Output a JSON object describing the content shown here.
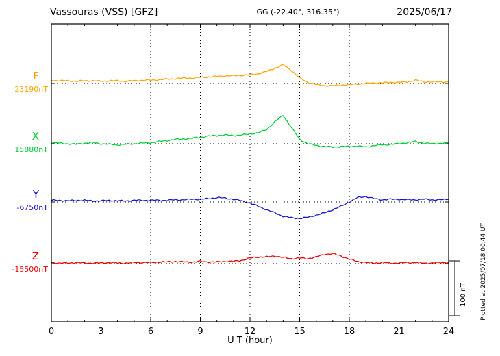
{
  "header": {
    "title": "Vassouras (VSS)  [GFZ]",
    "coordinates": "GG (-22.40°, 316.35°)",
    "date": "2025/06/17"
  },
  "side": {
    "plotted_at": "Plotted at 2025/07/18 00:44 UT",
    "scale_label": "100 nT"
  },
  "chart_data": {
    "type": "line",
    "title": "Vassouras (VSS) [GFZ] magnetogram",
    "subtitle": "GG (-22.40°, 316.35°)",
    "date": "2025/06/17",
    "xlabel": "U T (hour)",
    "xlim": [
      0,
      24
    ],
    "x_ticks": [
      0,
      3,
      6,
      9,
      12,
      15,
      18,
      21,
      24
    ],
    "x_step_hours": 0.5,
    "scale_bar_nT": 100,
    "grid": "dotted vertical lines every 3 h; dotted horizontal baseline per component",
    "legend_position": "left margin, one colored label per trace",
    "series": [
      {
        "name": "F",
        "baseline_label": "23190nT",
        "baseline_nT": 23190,
        "color": "#ffa400",
        "offsets_nT": [
          6,
          5,
          5,
          4,
          5,
          5,
          4,
          5,
          5,
          4,
          5,
          6,
          6,
          7,
          8,
          9,
          10,
          10,
          11,
          12,
          13,
          14,
          14,
          15,
          16,
          18,
          22,
          28,
          34,
          24,
          10,
          2,
          -2,
          -4,
          -4,
          -3,
          -2,
          -1,
          0,
          1,
          1,
          2,
          2,
          3,
          6,
          3,
          3,
          3,
          3
        ]
      },
      {
        "name": "X",
        "baseline_label": "15880nT",
        "baseline_nT": 15880,
        "color": "#00cc33",
        "offsets_nT": [
          2,
          1,
          0,
          -1,
          1,
          2,
          0,
          -1,
          -2,
          -1,
          0,
          1,
          2,
          4,
          6,
          8,
          9,
          10,
          12,
          14,
          15,
          16,
          15,
          16,
          18,
          20,
          26,
          40,
          52,
          30,
          8,
          0,
          -3,
          -5,
          -6,
          -5,
          -5,
          -4,
          -6,
          -3,
          -2,
          -1,
          0,
          2,
          4,
          1,
          0,
          1,
          1
        ]
      },
      {
        "name": "Y",
        "baseline_label": "-6750nT",
        "baseline_nT": -6750,
        "color": "#1414cc",
        "offsets_nT": [
          3,
          3,
          2,
          3,
          3,
          2,
          2,
          3,
          2,
          2,
          3,
          3,
          3,
          3,
          3,
          4,
          4,
          5,
          5,
          6,
          8,
          7,
          5,
          2,
          -2,
          -8,
          -14,
          -20,
          -26,
          -29,
          -30,
          -28,
          -24,
          -20,
          -14,
          -8,
          0,
          8,
          10,
          6,
          4,
          5,
          5,
          4,
          4,
          5,
          4,
          4,
          5
        ]
      },
      {
        "name": "Z",
        "baseline_label": "-15500nT",
        "baseline_nT": -15500,
        "color": "#ee0000",
        "offsets_nT": [
          2,
          1,
          1,
          2,
          1,
          1,
          1,
          2,
          1,
          1,
          2,
          2,
          2,
          3,
          3,
          4,
          3,
          3,
          4,
          3,
          3,
          4,
          4,
          6,
          10,
          12,
          12,
          14,
          11,
          9,
          10,
          9,
          12,
          17,
          18,
          14,
          8,
          4,
          2,
          1,
          2,
          1,
          1,
          2,
          2,
          1,
          1,
          2,
          2
        ]
      }
    ]
  }
}
